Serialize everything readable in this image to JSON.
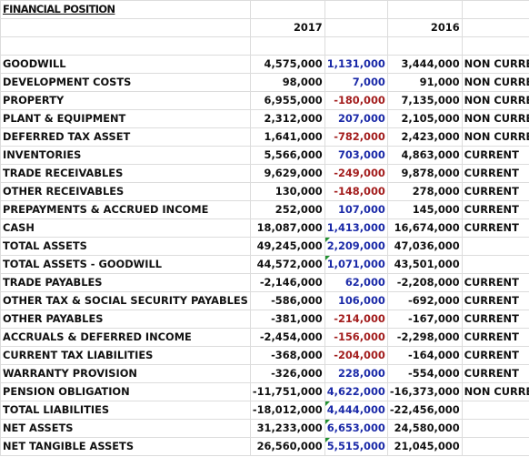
{
  "title": "FINANCIAL POSITION",
  "headers": {
    "year1": "2017",
    "year2": "2016"
  },
  "rows": [
    {
      "label": "GOODWILL",
      "v2017": "4,575,000",
      "change": "1,131,000",
      "v2016": "3,444,000",
      "type": "NON CURRENT",
      "dir": "pos",
      "marker": false
    },
    {
      "label": "DEVELOPMENT COSTS",
      "v2017": "98,000",
      "change": "7,000",
      "v2016": "91,000",
      "type": "NON CURRENT",
      "dir": "pos",
      "marker": false
    },
    {
      "label": "PROPERTY",
      "v2017": "6,955,000",
      "change": "-180,000",
      "v2016": "7,135,000",
      "type": "NON CURRENT",
      "dir": "neg",
      "marker": false
    },
    {
      "label": "PLANT & EQUIPMENT",
      "v2017": "2,312,000",
      "change": "207,000",
      "v2016": "2,105,000",
      "type": "NON CURRENT",
      "dir": "pos",
      "marker": false
    },
    {
      "label": "DEFERRED TAX ASSET",
      "v2017": "1,641,000",
      "change": "-782,000",
      "v2016": "2,423,000",
      "type": "NON CURRENT",
      "dir": "neg",
      "marker": false
    },
    {
      "label": "INVENTORIES",
      "v2017": "5,566,000",
      "change": "703,000",
      "v2016": "4,863,000",
      "type": "CURRENT",
      "dir": "pos",
      "marker": false
    },
    {
      "label": "TRADE RECEIVABLES",
      "v2017": "9,629,000",
      "change": "-249,000",
      "v2016": "9,878,000",
      "type": "CURRENT",
      "dir": "neg",
      "marker": false
    },
    {
      "label": "OTHER RECEIVABLES",
      "v2017": "130,000",
      "change": "-148,000",
      "v2016": "278,000",
      "type": "CURRENT",
      "dir": "neg",
      "marker": false
    },
    {
      "label": "PREPAYMENTS & ACCRUED INCOME",
      "v2017": "252,000",
      "change": "107,000",
      "v2016": "145,000",
      "type": "CURRENT",
      "dir": "pos",
      "marker": false
    },
    {
      "label": "CASH",
      "v2017": "18,087,000",
      "change": "1,413,000",
      "v2016": "16,674,000",
      "type": "CURRENT",
      "dir": "pos",
      "marker": false
    },
    {
      "label": "TOTAL ASSETS",
      "v2017": "49,245,000",
      "change": "2,209,000",
      "v2016": "47,036,000",
      "type": "",
      "dir": "pos",
      "marker": true
    },
    {
      "label": "TOTAL ASSETS - GOODWILL",
      "v2017": "44,572,000",
      "change": "1,071,000",
      "v2016": "43,501,000",
      "type": "",
      "dir": "pos",
      "marker": true
    },
    {
      "label": "TRADE PAYABLES",
      "v2017": "-2,146,000",
      "change": "62,000",
      "v2016": "-2,208,000",
      "type": "CURRENT",
      "dir": "pos",
      "marker": false
    },
    {
      "label": "OTHER TAX & SOCIAL SECURITY PAYABLES",
      "v2017": "-586,000",
      "change": "106,000",
      "v2016": "-692,000",
      "type": "CURRENT",
      "dir": "pos",
      "marker": false
    },
    {
      "label": "OTHER PAYABLES",
      "v2017": "-381,000",
      "change": "-214,000",
      "v2016": "-167,000",
      "type": "CURRENT",
      "dir": "neg",
      "marker": false
    },
    {
      "label": "ACCRUALS & DEFERRED INCOME",
      "v2017": "-2,454,000",
      "change": "-156,000",
      "v2016": "-2,298,000",
      "type": "CURRENT",
      "dir": "neg",
      "marker": false
    },
    {
      "label": "CURRENT TAX LIABILITIES",
      "v2017": "-368,000",
      "change": "-204,000",
      "v2016": "-164,000",
      "type": "CURRENT",
      "dir": "neg",
      "marker": false
    },
    {
      "label": "WARRANTY PROVISION",
      "v2017": "-326,000",
      "change": "228,000",
      "v2016": "-554,000",
      "type": "CURRENT",
      "dir": "pos",
      "marker": false
    },
    {
      "label": "PENSION OBLIGATION",
      "v2017": "-11,751,000",
      "change": "4,622,000",
      "v2016": "-16,373,000",
      "type": "NON CURRENT",
      "dir": "pos",
      "marker": false
    },
    {
      "label": "TOTAL LIABILITIES",
      "v2017": "-18,012,000",
      "change": "4,444,000",
      "v2016": "-22,456,000",
      "type": "",
      "dir": "pos",
      "marker": true
    },
    {
      "label": "NET ASSETS",
      "v2017": "31,233,000",
      "change": "6,653,000",
      "v2016": "24,580,000",
      "type": "",
      "dir": "pos",
      "marker": true
    },
    {
      "label": "NET TANGIBLE ASSETS",
      "v2017": "26,560,000",
      "change": "5,515,000",
      "v2016": "21,045,000",
      "type": "",
      "dir": "pos",
      "marker": true
    }
  ],
  "colors": {
    "positive": "#1b2aa8",
    "negative": "#a31d1d",
    "grid": "#dcdcdc",
    "marker": "#1f8f2e"
  }
}
